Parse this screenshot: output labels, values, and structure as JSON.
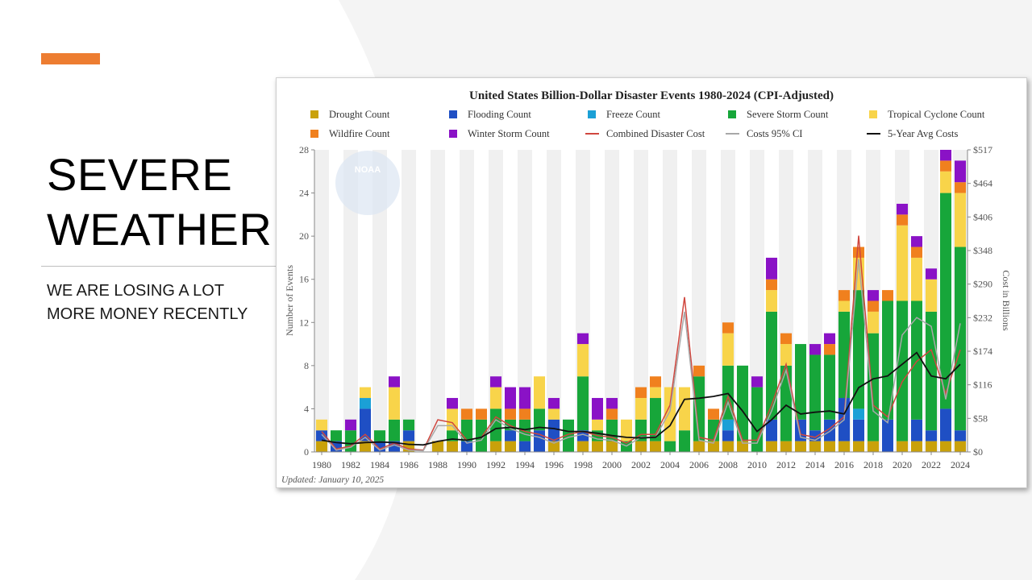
{
  "slide": {
    "title_line1": "SEVERE",
    "title_line2": "WEATHER",
    "subtitle_line1": "WE ARE LOSING A LOT",
    "subtitle_line2": "MORE MONEY RECENTLY",
    "accent_color": "#ED7D31"
  },
  "chart_data": {
    "type": "bar",
    "title": "United States Billion-Dollar Disaster Events 1980-2024 (CPI-Adjusted)",
    "ylabel": "Number of Events",
    "y2label": "Cost in Billions",
    "ylim": [
      0,
      28
    ],
    "yticks": [
      "0",
      "4",
      "8",
      "12",
      "16",
      "20",
      "24",
      "28"
    ],
    "y2lim": [
      0,
      517
    ],
    "y2ticks": [
      "$0",
      "$58",
      "$116",
      "$174",
      "$232",
      "$290",
      "$348",
      "$406",
      "$464",
      "$517"
    ],
    "xtick_labels": [
      "1980",
      "1982",
      "1984",
      "1986",
      "1988",
      "1990",
      "1992",
      "1994",
      "1996",
      "1998",
      "2000",
      "2002",
      "2004",
      "2006",
      "2008",
      "2010",
      "2012",
      "2014",
      "2016",
      "2018",
      "2020",
      "2022",
      "2024"
    ],
    "watermark": "NOAA",
    "footer": "Updated: January 10, 2025",
    "grid": "off",
    "legend_position": "top",
    "years": [
      1980,
      1981,
      1982,
      1983,
      1984,
      1985,
      1986,
      1987,
      1988,
      1989,
      1990,
      1991,
      1992,
      1993,
      1994,
      1995,
      1996,
      1997,
      1998,
      1999,
      2000,
      2001,
      2002,
      2003,
      2004,
      2005,
      2006,
      2007,
      2008,
      2009,
      2010,
      2011,
      2012,
      2013,
      2014,
      2015,
      2016,
      2017,
      2018,
      2019,
      2020,
      2021,
      2022,
      2023,
      2024
    ],
    "series": [
      {
        "name": "Drought Count",
        "color": "#C9A10A",
        "values": [
          1,
          0,
          0,
          1,
          0,
          0,
          1,
          0,
          1,
          1,
          0,
          0,
          1,
          1,
          0,
          0,
          1,
          0,
          1,
          1,
          1,
          0,
          1,
          1,
          0,
          0,
          1,
          1,
          1,
          1,
          0,
          1,
          1,
          1,
          1,
          1,
          1,
          1,
          1,
          0,
          1,
          1,
          1,
          1,
          1
        ]
      },
      {
        "name": "Flooding Count",
        "color": "#1F4FC4",
        "values": [
          1,
          1,
          0,
          3,
          1,
          1,
          1,
          0,
          0,
          0,
          1,
          0,
          0,
          1,
          1,
          2,
          2,
          0,
          1,
          0,
          0,
          0,
          0,
          0,
          0,
          0,
          0,
          0,
          1,
          0,
          0,
          2,
          0,
          2,
          1,
          2,
          4,
          2,
          0,
          3,
          0,
          2,
          1,
          3,
          1
        ]
      },
      {
        "name": "Freeze Count",
        "color": "#1BA0D6",
        "values": [
          0,
          0,
          0,
          1,
          0,
          0,
          0,
          0,
          0,
          0,
          0,
          0,
          0,
          0,
          0,
          0,
          0,
          0,
          0,
          0,
          0,
          0,
          0,
          0,
          0,
          0,
          0,
          0,
          1,
          0,
          0,
          0,
          0,
          0,
          0,
          0,
          0,
          1,
          0,
          0,
          0,
          0,
          0,
          0,
          0
        ]
      },
      {
        "name": "Severe Storm Count",
        "color": "#17A63A",
        "values": [
          0,
          1,
          2,
          0,
          1,
          2,
          1,
          0,
          0,
          1,
          2,
          3,
          3,
          1,
          2,
          2,
          0,
          3,
          5,
          1,
          2,
          1,
          2,
          4,
          1,
          2,
          6,
          2,
          5,
          7,
          6,
          10,
          7,
          7,
          7,
          6,
          8,
          11,
          10,
          11,
          13,
          11,
          11,
          20,
          17
        ]
      },
      {
        "name": "Tropical Cyclone Count",
        "color": "#F8D44A",
        "values": [
          1,
          0,
          0,
          1,
          0,
          3,
          0,
          0,
          0,
          2,
          0,
          0,
          2,
          0,
          0,
          3,
          1,
          0,
          3,
          1,
          0,
          2,
          2,
          1,
          5,
          4,
          0,
          0,
          3,
          0,
          0,
          2,
          2,
          0,
          0,
          0,
          1,
          3,
          2,
          0,
          7,
          4,
          3,
          2,
          5
        ]
      },
      {
        "name": "Wildfire Count",
        "color": "#F0801E",
        "values": [
          0,
          0,
          0,
          0,
          0,
          0,
          0,
          0,
          0,
          0,
          1,
          1,
          0,
          1,
          1,
          0,
          0,
          0,
          0,
          0,
          1,
          0,
          1,
          1,
          0,
          0,
          1,
          1,
          1,
          0,
          0,
          1,
          1,
          0,
          0,
          1,
          1,
          1,
          1,
          1,
          1,
          1,
          0,
          1,
          1
        ]
      },
      {
        "name": "Winter Storm Count",
        "color": "#8A12C6",
        "values": [
          0,
          0,
          1,
          0,
          0,
          1,
          0,
          0,
          0,
          1,
          0,
          0,
          1,
          2,
          2,
          0,
          1,
          0,
          1,
          2,
          1,
          0,
          0,
          0,
          0,
          0,
          0,
          0,
          0,
          0,
          1,
          2,
          0,
          0,
          1,
          1,
          0,
          0,
          1,
          0,
          1,
          1,
          1,
          1,
          2
        ]
      }
    ],
    "lines": [
      {
        "name": "Combined Disaster Cost",
        "color": "#D0463E",
        "values": [
          35,
          5,
          10,
          30,
          5,
          15,
          5,
          3,
          55,
          50,
          20,
          25,
          60,
          45,
          35,
          30,
          20,
          30,
          35,
          28,
          25,
          15,
          30,
          30,
          80,
          265,
          25,
          20,
          95,
          20,
          20,
          80,
          150,
          30,
          25,
          40,
          60,
          370,
          80,
          60,
          120,
          155,
          175,
          100,
          175
        ]
      },
      {
        "name": "Costs 95% CI",
        "color": "#A8A8A8",
        "values": [
          30,
          3,
          8,
          25,
          3,
          12,
          3,
          2,
          45,
          45,
          15,
          20,
          55,
          40,
          30,
          25,
          15,
          25,
          30,
          22,
          20,
          10,
          25,
          25,
          70,
          240,
          20,
          15,
          85,
          15,
          15,
          70,
          140,
          25,
          20,
          35,
          55,
          330,
          70,
          50,
          200,
          230,
          215,
          90,
          220
        ]
      },
      {
        "name": "5-Year Avg Costs",
        "color": "#111111",
        "values": [
          20,
          16,
          14,
          16,
          17,
          16,
          13,
          12,
          18,
          22,
          20,
          25,
          40,
          42,
          38,
          42,
          40,
          35,
          35,
          32,
          28,
          25,
          24,
          25,
          45,
          90,
          92,
          95,
          100,
          70,
          35,
          55,
          80,
          65,
          68,
          70,
          65,
          110,
          125,
          130,
          150,
          170,
          130,
          125,
          150
        ]
      }
    ]
  }
}
